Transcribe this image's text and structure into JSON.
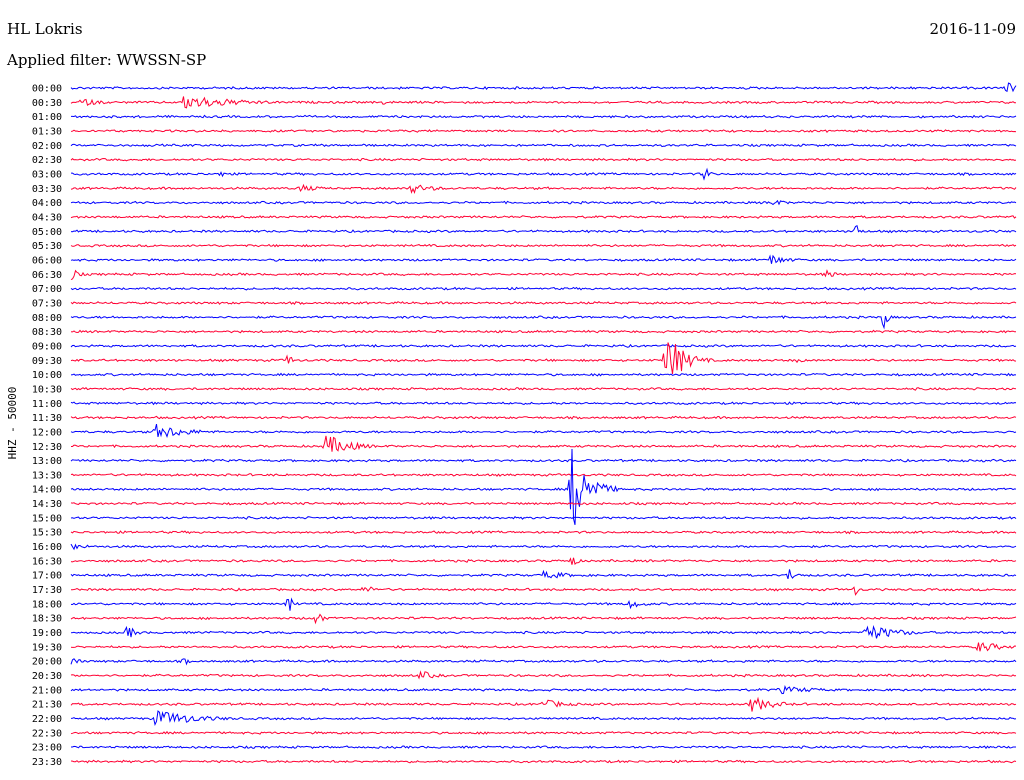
{
  "header": {
    "station": "HL Lokris",
    "date": "2016-11-09",
    "filter": "Applied filter: WWSSN-SP"
  },
  "colors": {
    "even_trace": "#0000ff",
    "odd_trace": "#ff0033",
    "text": "#000000"
  },
  "chart_data": {
    "type": "line",
    "ylabel": "HHZ - 50000",
    "tick_labels": [
      "00:00",
      "00:30",
      "01:00",
      "01:30",
      "02:00",
      "02:30",
      "03:00",
      "03:30",
      "04:00",
      "04:30",
      "05:00",
      "05:30",
      "06:00",
      "06:30",
      "07:00",
      "07:30",
      "08:00",
      "08:30",
      "09:00",
      "09:30",
      "10:00",
      "10:30",
      "11:00",
      "11:30",
      "12:00",
      "12:30",
      "13:00",
      "13:30",
      "14:00",
      "14:30",
      "15:00",
      "15:30",
      "16:00",
      "16:30",
      "17:00",
      "17:30",
      "18:00",
      "18:30",
      "19:00",
      "19:30",
      "20:00",
      "20:30",
      "21:00",
      "21:30",
      "22:00",
      "22:30",
      "23:00",
      "23:30"
    ],
    "events": [
      {
        "row": 0,
        "pos": 0.99,
        "amp": 6,
        "dur": 0.015
      },
      {
        "row": 1,
        "pos": 0.01,
        "amp": 4,
        "dur": 0.03
      },
      {
        "row": 1,
        "pos": 0.12,
        "amp": 8,
        "dur": 0.06
      },
      {
        "row": 1,
        "pos": 0.33,
        "amp": 3,
        "dur": 0.005
      },
      {
        "row": 6,
        "pos": 0.16,
        "amp": 7,
        "dur": 0.005
      },
      {
        "row": 6,
        "pos": 0.67,
        "amp": 9,
        "dur": 0.006
      },
      {
        "row": 7,
        "pos": 0.24,
        "amp": 4,
        "dur": 0.03
      },
      {
        "row": 7,
        "pos": 0.36,
        "amp": 5,
        "dur": 0.03
      },
      {
        "row": 8,
        "pos": 0.74,
        "amp": 4,
        "dur": 0.02
      },
      {
        "row": 10,
        "pos": 0.83,
        "amp": 11,
        "dur": 0.005
      },
      {
        "row": 12,
        "pos": 0.74,
        "amp": 6,
        "dur": 0.02
      },
      {
        "row": 13,
        "pos": 0.0,
        "amp": 7,
        "dur": 0.01
      },
      {
        "row": 13,
        "pos": 0.8,
        "amp": 5,
        "dur": 0.01
      },
      {
        "row": 16,
        "pos": 0.86,
        "amp": 12,
        "dur": 0.005
      },
      {
        "row": 19,
        "pos": 0.23,
        "amp": 8,
        "dur": 0.005
      },
      {
        "row": 19,
        "pos": 0.63,
        "amp": 30,
        "dur": 0.02
      },
      {
        "row": 19,
        "pos": 0.77,
        "amp": 5,
        "dur": 0.005
      },
      {
        "row": 24,
        "pos": 0.09,
        "amp": 8,
        "dur": 0.04
      },
      {
        "row": 25,
        "pos": 0.27,
        "amp": 12,
        "dur": 0.03
      },
      {
        "row": 28,
        "pos": 0.53,
        "amp": 45,
        "dur": 0.02
      },
      {
        "row": 32,
        "pos": 0.0,
        "amp": 4,
        "dur": 0.02
      },
      {
        "row": 33,
        "pos": 0.53,
        "amp": 8,
        "dur": 0.006
      },
      {
        "row": 34,
        "pos": 0.5,
        "amp": 4,
        "dur": 0.04
      },
      {
        "row": 34,
        "pos": 0.76,
        "amp": 7,
        "dur": 0.01
      },
      {
        "row": 35,
        "pos": 0.31,
        "amp": 4,
        "dur": 0.02
      },
      {
        "row": 35,
        "pos": 0.83,
        "amp": 6,
        "dur": 0.005
      },
      {
        "row": 36,
        "pos": 0.23,
        "amp": 10,
        "dur": 0.006
      },
      {
        "row": 36,
        "pos": 0.59,
        "amp": 5,
        "dur": 0.02
      },
      {
        "row": 37,
        "pos": 0.26,
        "amp": 11,
        "dur": 0.006
      },
      {
        "row": 38,
        "pos": 0.06,
        "amp": 8,
        "dur": 0.01
      },
      {
        "row": 38,
        "pos": 0.84,
        "amp": 9,
        "dur": 0.04
      },
      {
        "row": 39,
        "pos": 0.96,
        "amp": 6,
        "dur": 0.03
      },
      {
        "row": 40,
        "pos": 0.0,
        "amp": 6,
        "dur": 0.01
      },
      {
        "row": 40,
        "pos": 0.12,
        "amp": 5,
        "dur": 0.005
      },
      {
        "row": 41,
        "pos": 0.37,
        "amp": 5,
        "dur": 0.02
      },
      {
        "row": 42,
        "pos": 0.75,
        "amp": 4,
        "dur": 0.05
      },
      {
        "row": 43,
        "pos": 0.5,
        "amp": 5,
        "dur": 0.03
      },
      {
        "row": 43,
        "pos": 0.72,
        "amp": 8,
        "dur": 0.03
      },
      {
        "row": 44,
        "pos": 0.09,
        "amp": 9,
        "dur": 0.05
      },
      {
        "row": 46,
        "pos": 0.82,
        "amp": 4,
        "dur": 0.005
      }
    ]
  }
}
